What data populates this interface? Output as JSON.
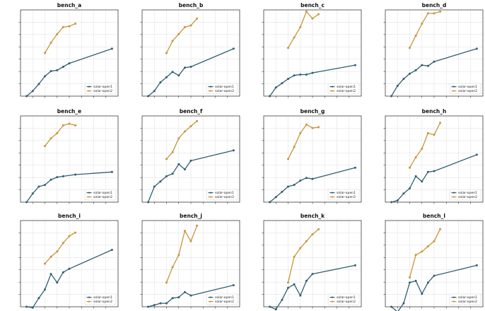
{
  "figure": {
    "colors": {
      "series1": "#2f5f73",
      "series2": "#c9953a",
      "grid": "#e3e3e3",
      "axis": "#222222"
    },
    "series_names": [
      "solar-open1",
      "solar-open2"
    ]
  },
  "chart_data": [
    {
      "type": "line",
      "title": "bench_a",
      "x": [
        1,
        2,
        3,
        4,
        5,
        6,
        7,
        8,
        9,
        10,
        11,
        12,
        13,
        14,
        15
      ],
      "series": [
        {
          "name": "solar-open1",
          "values": [
            0,
            6,
            14,
            23,
            29,
            30,
            34,
            38,
            null,
            null,
            null,
            null,
            null,
            null,
            55
          ]
        },
        {
          "name": "solar-open2",
          "values": [
            null,
            null,
            null,
            50,
            62,
            72,
            80,
            81,
            84,
            null,
            null,
            null,
            null,
            null,
            null
          ]
        }
      ],
      "ylim": [
        0,
        100
      ],
      "xlim": [
        0,
        16
      ],
      "grid": true,
      "legend": "bottom-right"
    },
    {
      "type": "line",
      "title": "bench_b",
      "x": [
        1,
        2,
        3,
        4,
        5,
        6,
        7,
        8,
        9,
        10,
        11,
        12,
        13,
        14,
        15
      ],
      "series": [
        {
          "name": "solar-open1",
          "values": [
            0,
            6,
            16,
            22,
            28,
            24,
            33,
            34,
            null,
            null,
            null,
            null,
            null,
            null,
            55
          ]
        },
        {
          "name": "solar-open2",
          "values": [
            null,
            null,
            null,
            50,
            64,
            72,
            80,
            82,
            90,
            null,
            null,
            null,
            null,
            null,
            null
          ]
        }
      ],
      "ylim": [
        0,
        100
      ],
      "xlim": [
        0,
        16
      ],
      "grid": true,
      "legend": "bottom-right"
    },
    {
      "type": "line",
      "title": "bench_c",
      "x": [
        1,
        2,
        3,
        4,
        5,
        6,
        7,
        8,
        9,
        10,
        11,
        12,
        13,
        14,
        15
      ],
      "series": [
        {
          "name": "solar-open1",
          "values": [
            0,
            10,
            15,
            20,
            24,
            25,
            25,
            27,
            null,
            null,
            null,
            null,
            null,
            null,
            36
          ]
        },
        {
          "name": "solar-open2",
          "values": [
            null,
            null,
            null,
            56,
            68,
            80,
            98,
            90,
            95,
            null,
            null,
            null,
            null,
            null,
            null
          ]
        }
      ],
      "ylim": [
        0,
        100
      ],
      "xlim": [
        0,
        16
      ],
      "grid": true,
      "legend": "bottom-right"
    },
    {
      "type": "line",
      "title": "bench_d",
      "x": [
        1,
        2,
        3,
        4,
        5,
        6,
        7,
        8,
        9,
        10,
        11,
        12,
        13,
        14,
        15
      ],
      "series": [
        {
          "name": "solar-open1",
          "values": [
            0,
            12,
            20,
            26,
            30,
            36,
            35,
            40,
            null,
            null,
            null,
            null,
            null,
            null,
            55
          ]
        },
        {
          "name": "solar-open2",
          "values": [
            null,
            null,
            null,
            56,
            70,
            84,
            96,
            96,
            98,
            null,
            null,
            null,
            null,
            null,
            null
          ]
        }
      ],
      "ylim": [
        0,
        100
      ],
      "xlim": [
        0,
        16
      ],
      "grid": true,
      "legend": "bottom-right"
    },
    {
      "type": "line",
      "title": "bench_e",
      "x": [
        1,
        2,
        3,
        4,
        5,
        6,
        7,
        8,
        9,
        10,
        11,
        12,
        13,
        14,
        15
      ],
      "series": [
        {
          "name": "solar-open1",
          "values": [
            0,
            10,
            18,
            20,
            26,
            29,
            30,
            null,
            32,
            null,
            null,
            null,
            null,
            null,
            35
          ]
        },
        {
          "name": "solar-open2",
          "values": [
            null,
            null,
            null,
            65,
            74,
            80,
            89,
            91,
            89,
            null,
            null,
            null,
            null,
            null,
            null
          ]
        }
      ],
      "ylim": [
        0,
        100
      ],
      "xlim": [
        0,
        16
      ],
      "grid": true,
      "legend": "bottom-right"
    },
    {
      "type": "line",
      "title": "bench_f",
      "x": [
        1,
        2,
        3,
        4,
        5,
        6,
        7,
        8,
        9,
        10,
        11,
        12,
        13,
        14,
        15
      ],
      "series": [
        {
          "name": "solar-open1",
          "values": [
            0,
            18,
            24,
            30,
            33,
            44,
            38,
            48,
            null,
            null,
            null,
            null,
            null,
            null,
            60
          ]
        },
        {
          "name": "solar-open2",
          "values": [
            null,
            null,
            null,
            50,
            58,
            74,
            82,
            88,
            94,
            null,
            null,
            null,
            null,
            null,
            null
          ]
        }
      ],
      "ylim": [
        0,
        100
      ],
      "xlim": [
        0,
        16
      ],
      "grid": true,
      "legend": "bottom-right"
    },
    {
      "type": "line",
      "title": "bench_g",
      "x": [
        1,
        2,
        3,
        4,
        5,
        6,
        7,
        8,
        9,
        10,
        11,
        12,
        13,
        14,
        15
      ],
      "series": [
        {
          "name": "solar-open1",
          "values": [
            0,
            6,
            12,
            18,
            20,
            25,
            28,
            27,
            null,
            null,
            null,
            null,
            null,
            null,
            40
          ]
        },
        {
          "name": "solar-open2",
          "values": [
            null,
            null,
            null,
            50,
            64,
            80,
            90,
            86,
            87,
            null,
            null,
            null,
            null,
            null,
            null
          ]
        }
      ],
      "ylim": [
        0,
        100
      ],
      "xlim": [
        0,
        16
      ],
      "grid": true,
      "legend": "bottom-right"
    },
    {
      "type": "line",
      "title": "bench_h",
      "x": [
        1,
        2,
        3,
        4,
        5,
        6,
        7,
        8,
        9,
        10,
        11,
        12,
        13,
        14,
        15
      ],
      "series": [
        {
          "name": "solar-open1",
          "values": [
            0,
            2,
            10,
            16,
            30,
            24,
            35,
            36,
            null,
            null,
            null,
            null,
            null,
            null,
            55
          ]
        },
        {
          "name": "solar-open2",
          "values": [
            null,
            null,
            null,
            40,
            52,
            62,
            80,
            78,
            92,
            null,
            null,
            null,
            null,
            null,
            null
          ]
        }
      ],
      "ylim": [
        0,
        100
      ],
      "xlim": [
        0,
        16
      ],
      "grid": true,
      "legend": "bottom-right"
    },
    {
      "type": "line",
      "title": "bench_i",
      "x": [
        1,
        2,
        3,
        4,
        5,
        6,
        7,
        8,
        9,
        10,
        11,
        12,
        13,
        14,
        15
      ],
      "series": [
        {
          "name": "solar-open1",
          "values": [
            0,
            -1,
            10,
            20,
            38,
            28,
            40,
            44,
            null,
            null,
            null,
            null,
            null,
            null,
            66
          ]
        },
        {
          "name": "solar-open2",
          "values": [
            null,
            null,
            null,
            50,
            58,
            64,
            74,
            82,
            86,
            null,
            null,
            null,
            null,
            null,
            null
          ]
        }
      ],
      "ylim": [
        0,
        100
      ],
      "xlim": [
        0,
        16
      ],
      "grid": true,
      "legend": "bottom-right"
    },
    {
      "type": "line",
      "title": "bench_j",
      "x": [
        1,
        2,
        3,
        4,
        5,
        6,
        7,
        8,
        9,
        10,
        11,
        12,
        13,
        14,
        15
      ],
      "series": [
        {
          "name": "solar-open1",
          "values": [
            0,
            2,
            4,
            4,
            10,
            11,
            17,
            13,
            null,
            null,
            null,
            null,
            null,
            null,
            25
          ]
        },
        {
          "name": "solar-open2",
          "values": [
            null,
            null,
            null,
            28,
            46,
            60,
            88,
            76,
            94,
            null,
            null,
            null,
            null,
            null,
            null
          ]
        }
      ],
      "ylim": [
        0,
        100
      ],
      "xlim": [
        0,
        16
      ],
      "grid": true,
      "legend": "bottom-right"
    },
    {
      "type": "line",
      "title": "bench_k",
      "x": [
        1,
        2,
        3,
        4,
        5,
        6,
        7,
        8,
        9,
        10,
        11,
        12,
        13,
        14,
        15
      ],
      "series": [
        {
          "name": "solar-open1",
          "values": [
            0,
            -3,
            8,
            22,
            26,
            13,
            30,
            38,
            null,
            null,
            null,
            null,
            null,
            null,
            48
          ]
        },
        {
          "name": "solar-open2",
          "values": [
            null,
            null,
            null,
            28,
            58,
            68,
            76,
            84,
            90,
            null,
            null,
            null,
            null,
            null,
            null
          ]
        }
      ],
      "ylim": [
        0,
        100
      ],
      "xlim": [
        0,
        16
      ],
      "grid": true,
      "legend": "bottom-right"
    },
    {
      "type": "line",
      "title": "bench_l",
      "x": [
        1,
        2,
        3,
        4,
        5,
        6,
        7,
        8,
        9,
        10,
        11,
        12,
        13,
        14,
        15
      ],
      "series": [
        {
          "name": "solar-open1",
          "values": [
            0,
            -6,
            4,
            28,
            30,
            15,
            28,
            36,
            null,
            null,
            null,
            null,
            null,
            null,
            48
          ]
        },
        {
          "name": "solar-open2",
          "values": [
            null,
            null,
            null,
            34,
            60,
            64,
            70,
            76,
            90,
            null,
            null,
            null,
            null,
            null,
            null
          ]
        }
      ],
      "ylim": [
        0,
        100
      ],
      "xlim": [
        0,
        16
      ],
      "grid": true,
      "legend": "bottom-right"
    }
  ]
}
